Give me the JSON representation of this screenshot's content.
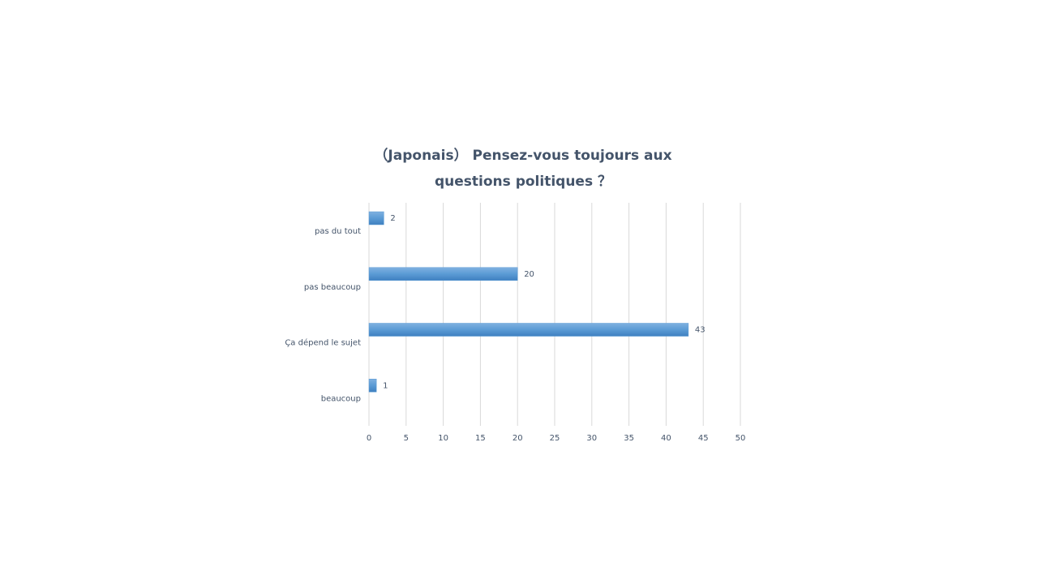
{
  "chart_data": {
    "type": "bar",
    "orientation": "horizontal",
    "title": "（Japonais） Pensez-vous  toujours aux questions politiques ？",
    "categories": [
      "pas du tout",
      "pas beaucoup",
      "Ça dépend le sujet",
      "beaucoup"
    ],
    "values": [
      2,
      20,
      43,
      1
    ],
    "color": "#5b9bd5",
    "xlim": [
      0,
      50
    ],
    "xticks": [
      0,
      5,
      10,
      15,
      20,
      25,
      30,
      35,
      40,
      45,
      50
    ],
    "grid": true
  }
}
